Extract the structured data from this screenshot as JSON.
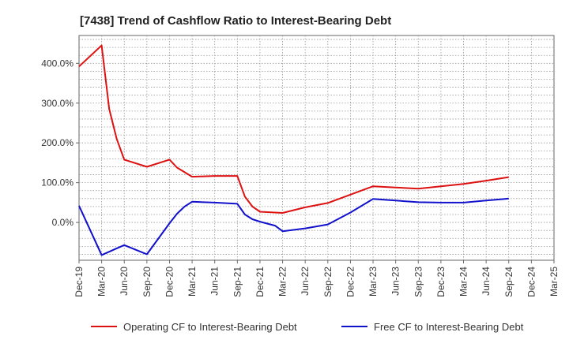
{
  "chart_data": {
    "type": "line",
    "title": "[7438]  Trend of Cashflow Ratio to Interest-Bearing Debt",
    "xlabel": "",
    "ylabel": "",
    "x_ticks": [
      "Dec-19",
      "Mar-20",
      "Jun-20",
      "Sep-20",
      "Dec-20",
      "Mar-21",
      "Jun-21",
      "Sep-21",
      "Dec-21",
      "Mar-22",
      "Jun-22",
      "Sep-22",
      "Dec-22",
      "Mar-23",
      "Jun-23",
      "Sep-23",
      "Dec-23",
      "Mar-24",
      "Jun-24",
      "Sep-24",
      "Dec-24",
      "Mar-25"
    ],
    "y_ticks": [
      {
        "value": 0,
        "label": "0.0%"
      },
      {
        "value": 100,
        "label": "100.0%"
      },
      {
        "value": 200,
        "label": "200.0%"
      },
      {
        "value": 300,
        "label": "300.0%"
      },
      {
        "value": 400,
        "label": "400.0%"
      }
    ],
    "ylim": [
      -95,
      470
    ],
    "grid": true,
    "legend_position": "bottom",
    "series": [
      {
        "name": "Operating CF to Interest-Bearing Debt",
        "color": "#dd1111",
        "points": [
          [
            "Dec-19",
            392
          ],
          [
            "Mar-20",
            445
          ],
          [
            "Apr-20",
            285
          ],
          [
            "May-20",
            210
          ],
          [
            "Jun-20",
            158
          ],
          [
            "Sep-20",
            140
          ],
          [
            "Dec-20",
            158
          ],
          [
            "Jan-21",
            138
          ],
          [
            "Mar-21",
            115
          ],
          [
            "Jun-21",
            117
          ],
          [
            "Sep-21",
            117
          ],
          [
            "Oct-21",
            65
          ],
          [
            "Nov-21",
            40
          ],
          [
            "Dec-21",
            27
          ],
          [
            "Mar-22",
            24
          ],
          [
            "Jun-22",
            38
          ],
          [
            "Sep-22",
            49
          ],
          [
            "Dec-22",
            70
          ],
          [
            "Mar-23",
            91
          ],
          [
            "Jun-23",
            88
          ],
          [
            "Sep-23",
            85
          ],
          [
            "Dec-23",
            91
          ],
          [
            "Mar-24",
            97
          ],
          [
            "Jun-24",
            105
          ],
          [
            "Sep-24",
            114
          ]
        ]
      },
      {
        "name": "Free CF to Interest-Bearing Debt",
        "color": "#1111cc",
        "points": [
          [
            "Dec-19",
            42
          ],
          [
            "Mar-20",
            -82
          ],
          [
            "May-20",
            -65
          ],
          [
            "Jun-20",
            -57
          ],
          [
            "Sep-20",
            -80
          ],
          [
            "Dec-20",
            -2
          ],
          [
            "Jan-21",
            22
          ],
          [
            "Feb-21",
            40
          ],
          [
            "Mar-21",
            52
          ],
          [
            "Jun-21",
            50
          ],
          [
            "Sep-21",
            47
          ],
          [
            "Oct-21",
            20
          ],
          [
            "Nov-21",
            8
          ],
          [
            "Dec-21",
            2
          ],
          [
            "Feb-22",
            -8
          ],
          [
            "Mar-22",
            -22
          ],
          [
            "Jun-22",
            -15
          ],
          [
            "Sep-22",
            -5
          ],
          [
            "Dec-22",
            25
          ],
          [
            "Mar-23",
            59
          ],
          [
            "Jun-23",
            55
          ],
          [
            "Sep-23",
            51
          ],
          [
            "Dec-23",
            50
          ],
          [
            "Mar-24",
            50
          ],
          [
            "Jun-24",
            55
          ],
          [
            "Sep-24",
            60
          ]
        ]
      }
    ]
  }
}
